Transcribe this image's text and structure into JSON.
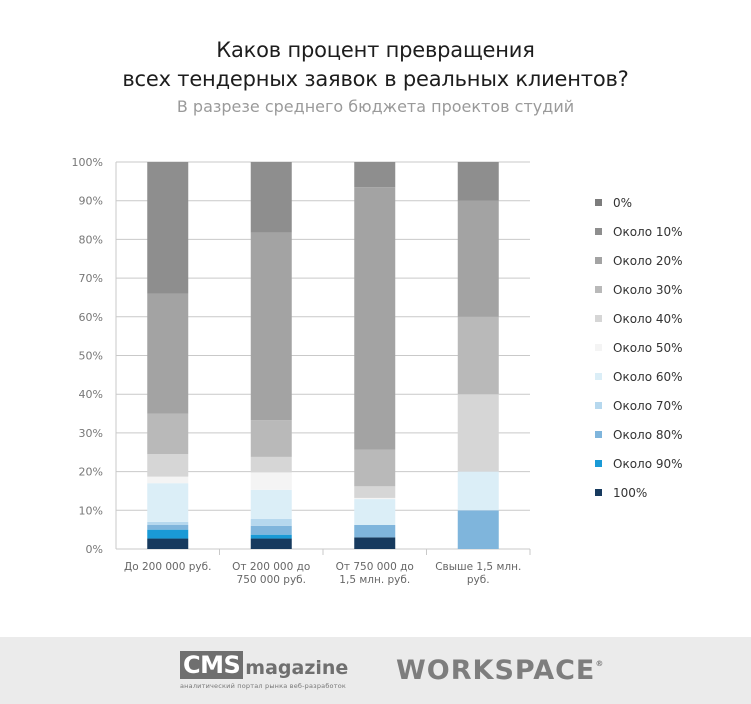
{
  "chart_data": {
    "type": "bar",
    "stacked": true,
    "title_line1": "Каков процент превращения",
    "title_line2": "всех тендерных заявок в реальных клиентов?",
    "subtitle": "В разрезе среднего бюджета проектов студий",
    "ylim": [
      0,
      100
    ],
    "yticks": [
      "0%",
      "10%",
      "20%",
      "30%",
      "40%",
      "50%",
      "60%",
      "70%",
      "80%",
      "90%",
      "100%"
    ],
    "categories": [
      [
        "До 200 000 руб."
      ],
      [
        "От 200 000 до",
        "750 000 руб."
      ],
      [
        "От 750 000 до",
        "1,5 млн. руб."
      ],
      [
        "Свыше 1,5 млн.",
        "руб."
      ]
    ],
    "legend_position": "right",
    "grid": true,
    "series": [
      {
        "name": "100%",
        "color": "#173a5e",
        "values": [
          2.7,
          2.7,
          3.0,
          0
        ]
      },
      {
        "name": "Около 90%",
        "color": "#1a9ad6",
        "values": [
          2.3,
          1.0,
          0,
          0
        ]
      },
      {
        "name": "Около 80%",
        "color": "#7fb5dc",
        "values": [
          1.2,
          2.3,
          3.2,
          10
        ]
      },
      {
        "name": "Около 70%",
        "color": "#b6d8ee",
        "values": [
          0.8,
          1.8,
          0,
          0
        ]
      },
      {
        "name": "Около 60%",
        "color": "#dbeef7",
        "values": [
          10.0,
          7.5,
          6.7,
          10
        ]
      },
      {
        "name": "Около 50%",
        "color": "#f4f4f4",
        "values": [
          1.7,
          4.5,
          0.3,
          0
        ]
      },
      {
        "name": "Около 40%",
        "color": "#d6d6d6",
        "values": [
          5.8,
          4.0,
          3.0,
          20
        ]
      },
      {
        "name": "Около 30%",
        "color": "#b9b9b9",
        "values": [
          10.5,
          9.5,
          9.5,
          20
        ]
      },
      {
        "name": "Около 20%",
        "color": "#a3a3a3",
        "values": [
          31.0,
          48.5,
          67.8,
          30
        ]
      },
      {
        "name": "Около 10%",
        "color": "#8e8e8e",
        "values": [
          34.0,
          18.2,
          6.5,
          10
        ]
      },
      {
        "name": "0%",
        "color": "#7c7c7c",
        "values": [
          0,
          0,
          0,
          0
        ]
      }
    ]
  },
  "footer": {
    "cms_logo_box": "CMS",
    "cms_logo_word": "magazine",
    "cms_tagline": "аналитический портал рынка веб-разработок",
    "workspace_logo": "WORKSPACE",
    "workspace_mark": "®"
  }
}
